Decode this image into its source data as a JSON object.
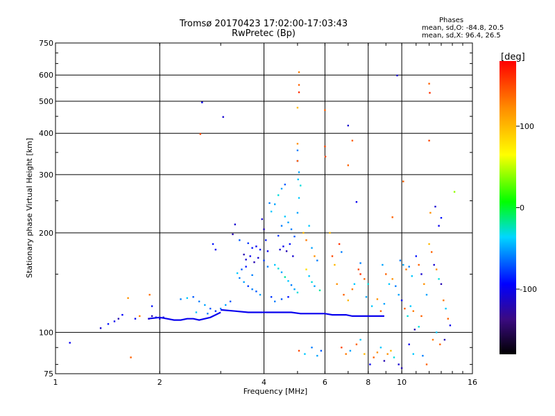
{
  "chart_data": {
    "type": "scatter",
    "title": "Tromsø 20170423 17:02:00-17:03:43",
    "subtitle": "RwPretec (Bp)",
    "legend": {
      "heading": "Phases",
      "line_o": "mean, sd,O: -84.8, 20.5",
      "line_x": "mean, sd,X:  96.4, 26.5"
    },
    "xlabel": "Frequency [MHz]",
    "ylabel": "Stationary phase Virtual Height [km]",
    "x_scale": "log",
    "y_scale": "log",
    "xlim": [
      1,
      16
    ],
    "ylim": [
      75,
      750
    ],
    "xticks": [
      1,
      2,
      4,
      6,
      8,
      10,
      16
    ],
    "yticks": [
      75,
      100,
      200,
      300,
      400,
      500,
      600,
      750
    ],
    "grid": true,
    "colorbar": {
      "label": "[deg]",
      "range": [
        -180,
        180
      ],
      "ticks": [
        100,
        0,
        -100
      ],
      "colormap": "rainbow-with-black"
    },
    "points": [
      [
        1.1,
        93,
        -100
      ],
      [
        1.35,
        103,
        -110
      ],
      [
        1.42,
        106,
        -90
      ],
      [
        1.48,
        108,
        -100
      ],
      [
        1.52,
        110,
        -120
      ],
      [
        1.56,
        113,
        -95
      ],
      [
        1.65,
        84,
        140
      ],
      [
        1.7,
        110,
        -100
      ],
      [
        1.75,
        112,
        130
      ],
      [
        1.62,
        127,
        120
      ],
      [
        1.86,
        110,
        -110
      ],
      [
        1.9,
        112,
        -120
      ],
      [
        1.95,
        111,
        -100
      ],
      [
        2.0,
        110,
        -115
      ],
      [
        2.05,
        111,
        -105
      ],
      [
        1.87,
        130,
        135
      ],
      [
        1.9,
        120,
        -90
      ],
      [
        2.3,
        126,
        -60
      ],
      [
        2.4,
        127,
        -40
      ],
      [
        2.5,
        128,
        -70
      ],
      [
        2.6,
        124,
        -60
      ],
      [
        2.7,
        121,
        -50
      ],
      [
        2.8,
        118,
        -70
      ],
      [
        2.9,
        116,
        -80
      ],
      [
        3.0,
        118,
        -60
      ],
      [
        3.1,
        121,
        -50
      ],
      [
        3.2,
        124,
        -70
      ],
      [
        2.55,
        115,
        -40
      ],
      [
        2.75,
        114,
        -60
      ],
      [
        2.62,
        398,
        150
      ],
      [
        2.65,
        496,
        -100
      ],
      [
        3.05,
        448,
        -110
      ],
      [
        2.85,
        185,
        -90
      ],
      [
        2.9,
        178,
        -100
      ],
      [
        3.3,
        212,
        -110
      ],
      [
        3.25,
        198,
        -120
      ],
      [
        3.4,
        190,
        -70
      ],
      [
        3.6,
        186,
        -80
      ],
      [
        3.7,
        180,
        -90
      ],
      [
        3.8,
        182,
        -100
      ],
      [
        3.9,
        178,
        -90
      ],
      [
        3.5,
        172,
        -120
      ],
      [
        3.55,
        166,
        -110
      ],
      [
        3.65,
        170,
        -100
      ],
      [
        3.75,
        163,
        -120
      ],
      [
        3.85,
        168,
        -110
      ],
      [
        3.4,
        146,
        -60
      ],
      [
        3.5,
        142,
        -50
      ],
      [
        3.6,
        138,
        -80
      ],
      [
        3.7,
        135,
        -60
      ],
      [
        3.8,
        133,
        -70
      ],
      [
        3.9,
        130,
        -50
      ],
      [
        3.35,
        151,
        -40
      ],
      [
        3.45,
        155,
        -70
      ],
      [
        3.55,
        158,
        -90
      ],
      [
        3.7,
        149,
        -60
      ],
      [
        3.95,
        220,
        -110
      ],
      [
        4.0,
        205,
        -120
      ],
      [
        4.05,
        190,
        -90
      ],
      [
        4.1,
        176,
        -100
      ],
      [
        4.0,
        165,
        -80
      ],
      [
        4.1,
        158,
        -60
      ],
      [
        4.15,
        246,
        -60
      ],
      [
        4.2,
        232,
        -40
      ],
      [
        4.3,
        244,
        -50
      ],
      [
        4.4,
        260,
        -30
      ],
      [
        4.5,
        272,
        -50
      ],
      [
        4.6,
        280,
        -70
      ],
      [
        4.4,
        196,
        -80
      ],
      [
        4.5,
        210,
        -60
      ],
      [
        4.6,
        224,
        -40
      ],
      [
        4.7,
        215,
        -50
      ],
      [
        4.8,
        205,
        -60
      ],
      [
        4.9,
        195,
        -70
      ],
      [
        4.45,
        178,
        -110
      ],
      [
        4.55,
        182,
        -100
      ],
      [
        4.65,
        176,
        -120
      ],
      [
        4.75,
        185,
        -90
      ],
      [
        4.85,
        170,
        -110
      ],
      [
        4.3,
        160,
        -40
      ],
      [
        4.4,
        156,
        -30
      ],
      [
        4.5,
        152,
        -50
      ],
      [
        4.6,
        147,
        -20
      ],
      [
        4.7,
        143,
        -40
      ],
      [
        4.8,
        139,
        -60
      ],
      [
        4.9,
        135,
        -50
      ],
      [
        5.0,
        132,
        -30
      ],
      [
        4.2,
        128,
        -80
      ],
      [
        4.3,
        124,
        -60
      ],
      [
        4.5,
        126,
        -70
      ],
      [
        4.7,
        128,
        -90
      ],
      [
        5.0,
        230,
        -50
      ],
      [
        5.05,
        255,
        -40
      ],
      [
        5.1,
        278,
        -30
      ],
      [
        5.05,
        305,
        -50
      ],
      [
        5.0,
        330,
        -100
      ],
      [
        5.0,
        355,
        -60
      ],
      [
        5.0,
        372,
        120
      ],
      [
        5.0,
        330,
        140
      ],
      [
        5.02,
        290,
        -40
      ],
      [
        5.0,
        478,
        100
      ],
      [
        5.05,
        532,
        160
      ],
      [
        5.05,
        560,
        140
      ],
      [
        5.05,
        612,
        130
      ],
      [
        5.2,
        200,
        100
      ],
      [
        5.3,
        190,
        130
      ],
      [
        5.4,
        210,
        -40
      ],
      [
        5.5,
        180,
        -50
      ],
      [
        5.6,
        170,
        120
      ],
      [
        5.7,
        165,
        -60
      ],
      [
        5.3,
        155,
        80
      ],
      [
        5.4,
        148,
        -40
      ],
      [
        5.5,
        142,
        -30
      ],
      [
        5.6,
        138,
        -50
      ],
      [
        5.8,
        134,
        -20
      ],
      [
        5.05,
        88,
        150
      ],
      [
        5.25,
        86,
        -40
      ],
      [
        5.5,
        90,
        -60
      ],
      [
        5.7,
        85,
        -50
      ],
      [
        5.85,
        88,
        -70
      ],
      [
        6.0,
        470,
        140
      ],
      [
        6.02,
        340,
        150
      ],
      [
        6.0,
        365,
        150
      ],
      [
        6.2,
        200,
        100
      ],
      [
        6.3,
        170,
        150
      ],
      [
        6.4,
        160,
        100
      ],
      [
        6.6,
        185,
        160
      ],
      [
        6.7,
        175,
        -60
      ],
      [
        6.5,
        140,
        120
      ],
      [
        6.8,
        130,
        140
      ],
      [
        7.0,
        125,
        100
      ],
      [
        7.2,
        135,
        130
      ],
      [
        7.3,
        140,
        -40
      ],
      [
        7.5,
        155,
        150
      ],
      [
        7.6,
        150,
        160
      ],
      [
        7.8,
        145,
        140
      ],
      [
        8.0,
        140,
        -30
      ],
      [
        7.0,
        422,
        -110
      ],
      [
        7.2,
        380,
        140
      ],
      [
        7.4,
        248,
        -100
      ],
      [
        7.0,
        320,
        140
      ],
      [
        7.6,
        162,
        -60
      ],
      [
        7.9,
        128,
        -50
      ],
      [
        8.2,
        120,
        -40
      ],
      [
        8.5,
        126,
        120
      ],
      [
        8.7,
        116,
        140
      ],
      [
        8.9,
        122,
        -50
      ],
      [
        6.7,
        90,
        150
      ],
      [
        6.9,
        86,
        130
      ],
      [
        7.1,
        88,
        -50
      ],
      [
        7.4,
        92,
        140
      ],
      [
        7.6,
        95,
        -40
      ],
      [
        7.8,
        86,
        100
      ],
      [
        8.1,
        80,
        -100
      ],
      [
        8.3,
        84,
        140
      ],
      [
        8.5,
        87,
        120
      ],
      [
        8.7,
        90,
        -40
      ],
      [
        8.9,
        82,
        -120
      ],
      [
        9.1,
        86,
        120
      ],
      [
        9.3,
        88,
        100
      ],
      [
        9.5,
        84,
        -30
      ],
      [
        9.8,
        80,
        -110
      ],
      [
        10.0,
        78,
        -120
      ],
      [
        8.8,
        160,
        -50
      ],
      [
        9.0,
        150,
        140
      ],
      [
        9.2,
        140,
        -40
      ],
      [
        9.4,
        145,
        120
      ],
      [
        9.6,
        138,
        -60
      ],
      [
        9.8,
        130,
        -50
      ],
      [
        10.0,
        125,
        -100
      ],
      [
        10.2,
        118,
        140
      ],
      [
        10.4,
        112,
        -30
      ],
      [
        10.6,
        120,
        -40
      ],
      [
        10.8,
        116,
        130
      ],
      [
        9.9,
        165,
        -60
      ],
      [
        10.1,
        160,
        -50
      ],
      [
        10.3,
        155,
        130
      ],
      [
        10.5,
        158,
        -60
      ],
      [
        10.7,
        148,
        -40
      ],
      [
        11.0,
        170,
        -90
      ],
      [
        11.2,
        160,
        140
      ],
      [
        11.4,
        150,
        -110
      ],
      [
        11.6,
        140,
        120
      ],
      [
        11.8,
        130,
        -50
      ],
      [
        12.0,
        185,
        100
      ],
      [
        12.2,
        175,
        140
      ],
      [
        12.4,
        160,
        -110
      ],
      [
        12.6,
        155,
        120
      ],
      [
        12.8,
        145,
        -30
      ],
      [
        13.0,
        140,
        -120
      ],
      [
        13.2,
        125,
        130
      ],
      [
        13.4,
        118,
        -40
      ],
      [
        13.6,
        110,
        140
      ],
      [
        13.8,
        105,
        -100
      ],
      [
        12.0,
        565,
        140
      ],
      [
        12.05,
        530,
        160
      ],
      [
        12.0,
        380,
        150
      ],
      [
        12.1,
        230,
        120
      ],
      [
        12.5,
        240,
        -110
      ],
      [
        12.8,
        210,
        -100
      ],
      [
        13.0,
        222,
        -90
      ],
      [
        14.2,
        266,
        40
      ],
      [
        12.6,
        100,
        -40
      ],
      [
        12.9,
        92,
        140
      ],
      [
        10.8,
        86,
        -40
      ],
      [
        10.5,
        92,
        -100
      ],
      [
        11.5,
        85,
        -60
      ],
      [
        11.8,
        80,
        140
      ],
      [
        9.7,
        598,
        -110
      ],
      [
        9.4,
        223,
        140
      ],
      [
        10.1,
        286,
        140
      ],
      [
        11.2,
        104,
        -30
      ],
      [
        10.9,
        102,
        -120
      ],
      [
        11.4,
        112,
        140
      ],
      [
        12.3,
        95,
        130
      ],
      [
        13.3,
        95,
        -120
      ]
    ],
    "lines": [
      {
        "phase": -100,
        "points": [
          [
            3.0,
            117
          ],
          [
            3.3,
            116
          ],
          [
            3.6,
            115
          ],
          [
            3.9,
            115
          ],
          [
            4.2,
            115
          ],
          [
            4.5,
            115
          ],
          [
            4.8,
            115
          ],
          [
            5.1,
            114
          ],
          [
            5.4,
            114
          ],
          [
            5.7,
            114
          ],
          [
            6.0,
            114
          ],
          [
            6.3,
            113
          ],
          [
            6.6,
            113
          ],
          [
            6.9,
            113
          ],
          [
            7.2,
            112
          ],
          [
            7.5,
            112
          ],
          [
            7.8,
            112
          ],
          [
            8.1,
            112
          ],
          [
            8.5,
            112
          ],
          [
            8.9,
            112
          ]
        ]
      },
      {
        "phase": -100,
        "points": [
          [
            1.85,
            110
          ],
          [
            2.0,
            111
          ],
          [
            2.1,
            110
          ],
          [
            2.2,
            109
          ],
          [
            2.3,
            109
          ],
          [
            2.4,
            110
          ],
          [
            2.5,
            110
          ],
          [
            2.6,
            109
          ],
          [
            2.7,
            110
          ],
          [
            2.8,
            111
          ],
          [
            2.9,
            113
          ],
          [
            3.0,
            115
          ]
        ]
      }
    ]
  }
}
